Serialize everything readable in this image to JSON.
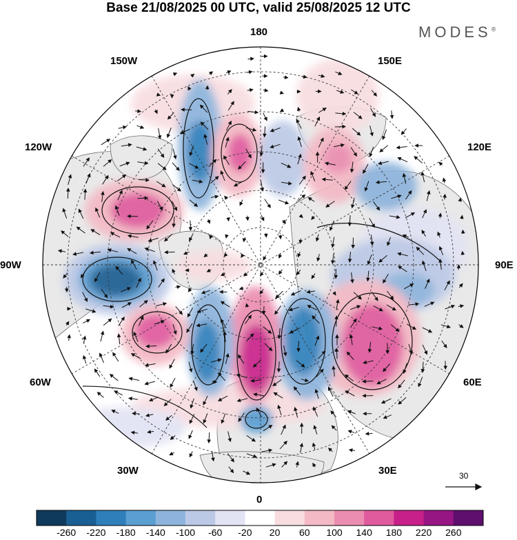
{
  "title": "Base 21/08/2025 00 UTC, valid 25/08/2025 12 UTC",
  "brand": "MODES",
  "brand_mark": "®",
  "lon_labels": {
    "top": "180",
    "bottom": "0",
    "left": "90W",
    "right": "90E",
    "upper_left_outer": "150W",
    "upper_left_inner": "120W",
    "upper_right_outer": "150E",
    "upper_right_inner": "120E",
    "lower_left_inner": "60W",
    "lower_left_outer": "30W",
    "lower_right_inner": "60E",
    "lower_right_outer": "30E"
  },
  "reference_vector": {
    "label": "30"
  },
  "colorbar": {
    "ticks": [
      "-260",
      "-220",
      "-180",
      "-140",
      "-100",
      "-60",
      "-20",
      "20",
      "60",
      "100",
      "140",
      "180",
      "220",
      "260"
    ],
    "colors": [
      "#0f3a5c",
      "#1a5f93",
      "#2f7fba",
      "#5a9ed2",
      "#8db4dc",
      "#bcc9e6",
      "#e2e3f3",
      "#ffffff",
      "#f8dde0",
      "#f3b9c4",
      "#eb8db0",
      "#e05a9e",
      "#c8208a",
      "#961683",
      "#5f0f6e"
    ]
  },
  "colors": {
    "land": "#e9e9e9",
    "ocean": "#ffffff",
    "grid": "#444444",
    "coast": "#555555"
  },
  "anomaly_cells": [
    {
      "name": "cell-blue-north-atlantic-west",
      "value": -260
    },
    {
      "name": "cell-pink-north-america",
      "value": 160
    },
    {
      "name": "cell-blue-aleutian-west",
      "value": -170
    },
    {
      "name": "cell-pink-bering",
      "value": 200
    },
    {
      "name": "cell-blue-chukchi",
      "value": -100
    },
    {
      "name": "cell-pink-siberia-east",
      "value": 140
    },
    {
      "name": "cell-blue-siberia",
      "value": -140
    },
    {
      "name": "cell-blue-ural",
      "value": -100
    },
    {
      "name": "cell-pink-west-asia",
      "value": 180
    },
    {
      "name": "cell-blue-scandinavia",
      "value": -200
    },
    {
      "name": "cell-pink-north-sea",
      "value": 240
    },
    {
      "name": "cell-blue-greenland-east",
      "value": -180
    },
    {
      "name": "cell-pink-labrador",
      "value": 150
    },
    {
      "name": "cell-blue-mediterranean",
      "value": -120
    },
    {
      "name": "cell-pink-pacific",
      "value": 60
    }
  ]
}
